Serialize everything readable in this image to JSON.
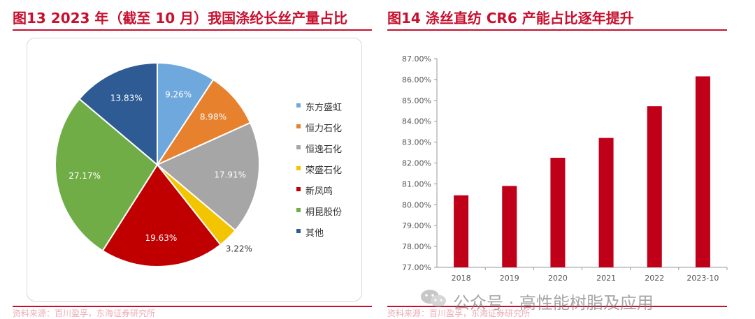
{
  "figure13": {
    "title": "图13  2023 年（截至 10 月）我国涤纶长丝产量占比"
  },
  "figure14": {
    "title": "图14  涤丝直纺 CR6 产能占比逐年提升"
  },
  "sources": {
    "left": "资料来源：百川盈孚，东海证券研究所",
    "right": "资料来源：百川盈孚，东海证券研究所"
  },
  "watermark": {
    "text": "公众号 · 高性能树脂及应用"
  },
  "colors": {
    "accent_red": "#c8102e",
    "bar_red": "#c00018"
  },
  "chart_data": [
    {
      "type": "pie",
      "title": "",
      "labels": [
        "东方盛虹",
        "恒力石化",
        "恒逸石化",
        "荣盛石化",
        "新凤鸣",
        "桐昆股份",
        "其他"
      ],
      "values": [
        9.26,
        8.98,
        17.91,
        3.22,
        19.63,
        27.17,
        13.83
      ],
      "value_labels": [
        "9.26%",
        "8.98%",
        "17.91%",
        "3.22%",
        "19.63%",
        "27.17%",
        "13.83%"
      ],
      "colors": [
        "#6fa8dc",
        "#e8812e",
        "#a6a6a6",
        "#f2c500",
        "#c00000",
        "#70ad47",
        "#2e5b94"
      ],
      "legend_position": "right"
    },
    {
      "type": "bar",
      "title": "",
      "categories": [
        "2018",
        "2019",
        "2020",
        "2021",
        "2022",
        "2023-10"
      ],
      "values": [
        80.45,
        80.9,
        82.25,
        83.2,
        84.72,
        86.15
      ],
      "ylim": [
        77,
        87
      ],
      "yticks": [
        "77.00%",
        "78.00%",
        "79.00%",
        "80.00%",
        "81.00%",
        "82.00%",
        "83.00%",
        "84.00%",
        "85.00%",
        "86.00%",
        "87.00%"
      ],
      "grid": false,
      "color": "#c00018"
    }
  ]
}
